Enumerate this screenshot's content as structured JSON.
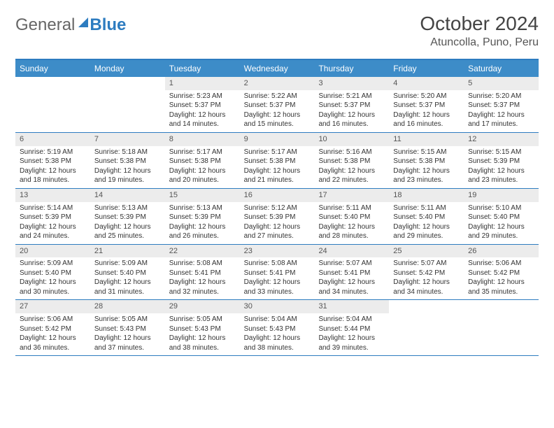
{
  "logo": {
    "part1": "General",
    "part2": "Blue"
  },
  "title": "October 2024",
  "location": "Atuncolla, Puno, Peru",
  "colors": {
    "header_bg": "#3d8cc8",
    "border": "#2d7cc0",
    "daynum_bg": "#ececec",
    "page_bg": "#ffffff",
    "text": "#333333"
  },
  "weekdays": [
    "Sunday",
    "Monday",
    "Tuesday",
    "Wednesday",
    "Thursday",
    "Friday",
    "Saturday"
  ],
  "weeks": [
    [
      {
        "n": "",
        "sr": "",
        "ss": "",
        "dl1": "",
        "dl2": ""
      },
      {
        "n": "",
        "sr": "",
        "ss": "",
        "dl1": "",
        "dl2": ""
      },
      {
        "n": "1",
        "sr": "Sunrise: 5:23 AM",
        "ss": "Sunset: 5:37 PM",
        "dl1": "Daylight: 12 hours",
        "dl2": "and 14 minutes."
      },
      {
        "n": "2",
        "sr": "Sunrise: 5:22 AM",
        "ss": "Sunset: 5:37 PM",
        "dl1": "Daylight: 12 hours",
        "dl2": "and 15 minutes."
      },
      {
        "n": "3",
        "sr": "Sunrise: 5:21 AM",
        "ss": "Sunset: 5:37 PM",
        "dl1": "Daylight: 12 hours",
        "dl2": "and 16 minutes."
      },
      {
        "n": "4",
        "sr": "Sunrise: 5:20 AM",
        "ss": "Sunset: 5:37 PM",
        "dl1": "Daylight: 12 hours",
        "dl2": "and 16 minutes."
      },
      {
        "n": "5",
        "sr": "Sunrise: 5:20 AM",
        "ss": "Sunset: 5:37 PM",
        "dl1": "Daylight: 12 hours",
        "dl2": "and 17 minutes."
      }
    ],
    [
      {
        "n": "6",
        "sr": "Sunrise: 5:19 AM",
        "ss": "Sunset: 5:38 PM",
        "dl1": "Daylight: 12 hours",
        "dl2": "and 18 minutes."
      },
      {
        "n": "7",
        "sr": "Sunrise: 5:18 AM",
        "ss": "Sunset: 5:38 PM",
        "dl1": "Daylight: 12 hours",
        "dl2": "and 19 minutes."
      },
      {
        "n": "8",
        "sr": "Sunrise: 5:17 AM",
        "ss": "Sunset: 5:38 PM",
        "dl1": "Daylight: 12 hours",
        "dl2": "and 20 minutes."
      },
      {
        "n": "9",
        "sr": "Sunrise: 5:17 AM",
        "ss": "Sunset: 5:38 PM",
        "dl1": "Daylight: 12 hours",
        "dl2": "and 21 minutes."
      },
      {
        "n": "10",
        "sr": "Sunrise: 5:16 AM",
        "ss": "Sunset: 5:38 PM",
        "dl1": "Daylight: 12 hours",
        "dl2": "and 22 minutes."
      },
      {
        "n": "11",
        "sr": "Sunrise: 5:15 AM",
        "ss": "Sunset: 5:38 PM",
        "dl1": "Daylight: 12 hours",
        "dl2": "and 23 minutes."
      },
      {
        "n": "12",
        "sr": "Sunrise: 5:15 AM",
        "ss": "Sunset: 5:39 PM",
        "dl1": "Daylight: 12 hours",
        "dl2": "and 23 minutes."
      }
    ],
    [
      {
        "n": "13",
        "sr": "Sunrise: 5:14 AM",
        "ss": "Sunset: 5:39 PM",
        "dl1": "Daylight: 12 hours",
        "dl2": "and 24 minutes."
      },
      {
        "n": "14",
        "sr": "Sunrise: 5:13 AM",
        "ss": "Sunset: 5:39 PM",
        "dl1": "Daylight: 12 hours",
        "dl2": "and 25 minutes."
      },
      {
        "n": "15",
        "sr": "Sunrise: 5:13 AM",
        "ss": "Sunset: 5:39 PM",
        "dl1": "Daylight: 12 hours",
        "dl2": "and 26 minutes."
      },
      {
        "n": "16",
        "sr": "Sunrise: 5:12 AM",
        "ss": "Sunset: 5:39 PM",
        "dl1": "Daylight: 12 hours",
        "dl2": "and 27 minutes."
      },
      {
        "n": "17",
        "sr": "Sunrise: 5:11 AM",
        "ss": "Sunset: 5:40 PM",
        "dl1": "Daylight: 12 hours",
        "dl2": "and 28 minutes."
      },
      {
        "n": "18",
        "sr": "Sunrise: 5:11 AM",
        "ss": "Sunset: 5:40 PM",
        "dl1": "Daylight: 12 hours",
        "dl2": "and 29 minutes."
      },
      {
        "n": "19",
        "sr": "Sunrise: 5:10 AM",
        "ss": "Sunset: 5:40 PM",
        "dl1": "Daylight: 12 hours",
        "dl2": "and 29 minutes."
      }
    ],
    [
      {
        "n": "20",
        "sr": "Sunrise: 5:09 AM",
        "ss": "Sunset: 5:40 PM",
        "dl1": "Daylight: 12 hours",
        "dl2": "and 30 minutes."
      },
      {
        "n": "21",
        "sr": "Sunrise: 5:09 AM",
        "ss": "Sunset: 5:40 PM",
        "dl1": "Daylight: 12 hours",
        "dl2": "and 31 minutes."
      },
      {
        "n": "22",
        "sr": "Sunrise: 5:08 AM",
        "ss": "Sunset: 5:41 PM",
        "dl1": "Daylight: 12 hours",
        "dl2": "and 32 minutes."
      },
      {
        "n": "23",
        "sr": "Sunrise: 5:08 AM",
        "ss": "Sunset: 5:41 PM",
        "dl1": "Daylight: 12 hours",
        "dl2": "and 33 minutes."
      },
      {
        "n": "24",
        "sr": "Sunrise: 5:07 AM",
        "ss": "Sunset: 5:41 PM",
        "dl1": "Daylight: 12 hours",
        "dl2": "and 34 minutes."
      },
      {
        "n": "25",
        "sr": "Sunrise: 5:07 AM",
        "ss": "Sunset: 5:42 PM",
        "dl1": "Daylight: 12 hours",
        "dl2": "and 34 minutes."
      },
      {
        "n": "26",
        "sr": "Sunrise: 5:06 AM",
        "ss": "Sunset: 5:42 PM",
        "dl1": "Daylight: 12 hours",
        "dl2": "and 35 minutes."
      }
    ],
    [
      {
        "n": "27",
        "sr": "Sunrise: 5:06 AM",
        "ss": "Sunset: 5:42 PM",
        "dl1": "Daylight: 12 hours",
        "dl2": "and 36 minutes."
      },
      {
        "n": "28",
        "sr": "Sunrise: 5:05 AM",
        "ss": "Sunset: 5:43 PM",
        "dl1": "Daylight: 12 hours",
        "dl2": "and 37 minutes."
      },
      {
        "n": "29",
        "sr": "Sunrise: 5:05 AM",
        "ss": "Sunset: 5:43 PM",
        "dl1": "Daylight: 12 hours",
        "dl2": "and 38 minutes."
      },
      {
        "n": "30",
        "sr": "Sunrise: 5:04 AM",
        "ss": "Sunset: 5:43 PM",
        "dl1": "Daylight: 12 hours",
        "dl2": "and 38 minutes."
      },
      {
        "n": "31",
        "sr": "Sunrise: 5:04 AM",
        "ss": "Sunset: 5:44 PM",
        "dl1": "Daylight: 12 hours",
        "dl2": "and 39 minutes."
      },
      {
        "n": "",
        "sr": "",
        "ss": "",
        "dl1": "",
        "dl2": ""
      },
      {
        "n": "",
        "sr": "",
        "ss": "",
        "dl1": "",
        "dl2": ""
      }
    ]
  ]
}
